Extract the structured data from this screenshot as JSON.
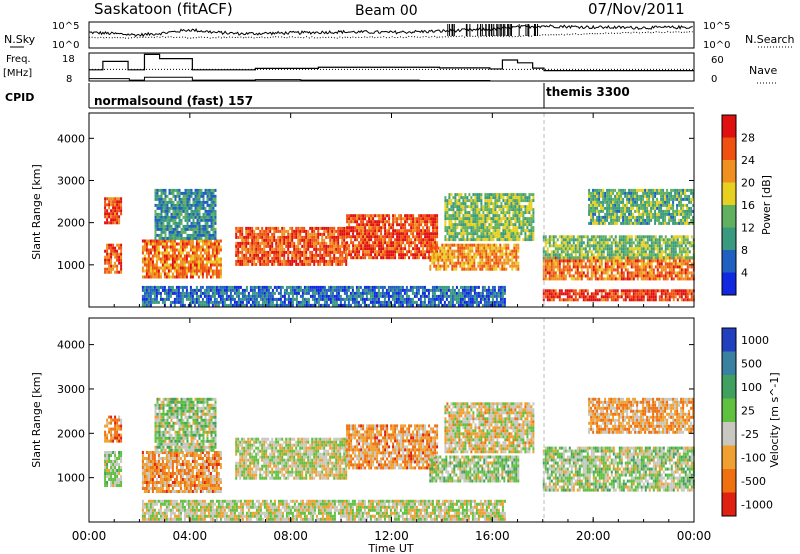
{
  "header": {
    "station": "Saskatoon (fitACF)",
    "beam": "Beam 00",
    "date": "07/Nov/2011"
  },
  "chart_data": [
    {
      "type": "line",
      "panel": "sky-search",
      "left_label": "N.Sky",
      "right_label": "N.Search",
      "left_ticks": [
        "10^5",
        "10^0"
      ],
      "right_ticks": [
        "10^5",
        "10^0"
      ],
      "x": [
        0,
        1,
        2,
        3,
        4,
        5,
        6,
        8,
        10,
        12,
        14,
        16,
        17,
        18,
        20,
        22,
        24
      ],
      "sky_level": [
        0.6,
        0.55,
        0.5,
        0.58,
        0.7,
        0.6,
        0.55,
        0.58,
        0.62,
        0.6,
        0.65,
        0.72,
        0.8,
        0.85,
        0.8,
        0.78,
        0.8
      ],
      "search_level": [
        0.4,
        0.4,
        0.4,
        0.42,
        0.4,
        0.4,
        0.4,
        0.42,
        0.4,
        0.42,
        0.43,
        0.45,
        0.45,
        0.5,
        0.55,
        0.6,
        0.62
      ]
    },
    {
      "type": "line",
      "panel": "frequency-nave",
      "left_label_lines": [
        "Freq.",
        "[MHz]"
      ],
      "right_label": "Nave",
      "left_ticks": [
        18,
        8
      ],
      "right_ticks": [
        60,
        0
      ],
      "left_range": [
        8,
        18
      ],
      "right_range": [
        0,
        60
      ],
      "freq_steps": [
        [
          0,
          12
        ],
        [
          0.55,
          15
        ],
        [
          1.55,
          12
        ],
        [
          2.2,
          17.5
        ],
        [
          2.8,
          16
        ],
        [
          4.1,
          12
        ],
        [
          6.6,
          12.5
        ],
        [
          9.1,
          12.9
        ],
        [
          13.1,
          12.9
        ],
        [
          13.9,
          12.7
        ],
        [
          15.9,
          12.3
        ],
        [
          16.4,
          15.5
        ],
        [
          17.0,
          14.5
        ],
        [
          17.6,
          12.6
        ],
        [
          18.05,
          11.7
        ],
        [
          24,
          11.7
        ]
      ],
      "nave_steps": [
        [
          0,
          5
        ],
        [
          1.4,
          5
        ],
        [
          1.6,
          2
        ],
        [
          2.2,
          8
        ],
        [
          4.1,
          2
        ],
        [
          6.6,
          3
        ],
        [
          8.4,
          2
        ],
        [
          13.1,
          1
        ],
        [
          15.9,
          0
        ],
        [
          16.4,
          0
        ],
        [
          18.05,
          0
        ],
        [
          24,
          0
        ]
      ],
      "nave_dotted": 25
    },
    {
      "type": "table",
      "panel": "cpid",
      "label": "CPID",
      "segments": [
        {
          "start": 0,
          "end": 18.05,
          "text": "normalsound (fast) 157"
        },
        {
          "start": 18.05,
          "end": 24,
          "text": "themis 3300"
        }
      ]
    },
    {
      "type": "heatmap",
      "panel": "power",
      "ylabel": "Slant Range [km]",
      "yticks": [
        1000,
        2000,
        3000,
        4000
      ],
      "ylim": [
        0,
        4600
      ],
      "colorbar_label": "Power [dB]",
      "colorbar_ticks": [
        4,
        8,
        12,
        16,
        20,
        24,
        28
      ],
      "colors": [
        "#1028e0",
        "#2060c0",
        "#3a9a80",
        "#60b060",
        "#e8d020",
        "#f09020",
        "#f05010",
        "#e01010"
      ],
      "bands": [
        {
          "x0": 0.6,
          "x1": 1.3,
          "y0": 2000,
          "y1": 2600,
          "level": 0.85
        },
        {
          "x0": 0.6,
          "x1": 1.3,
          "y0": 800,
          "y1": 1500,
          "level": 0.8
        },
        {
          "x0": 2.1,
          "x1": 5.2,
          "y0": 700,
          "y1": 1600,
          "level": 0.75
        },
        {
          "x0": 2.6,
          "x1": 5.0,
          "y0": 1600,
          "y1": 2800,
          "level": 0.3
        },
        {
          "x0": 5.8,
          "x1": 10.2,
          "y0": 1000,
          "y1": 1900,
          "level": 0.82
        },
        {
          "x0": 10.2,
          "x1": 13.8,
          "y0": 1200,
          "y1": 2200,
          "level": 0.85
        },
        {
          "x0": 13.5,
          "x1": 17.0,
          "y0": 900,
          "y1": 1500,
          "level": 0.7
        },
        {
          "x0": 14.1,
          "x1": 17.6,
          "y0": 1600,
          "y1": 2700,
          "level": 0.45
        },
        {
          "x0": 18.0,
          "x1": 24.0,
          "y0": 700,
          "y1": 1200,
          "level": 0.75
        },
        {
          "x0": 18.0,
          "x1": 24.0,
          "y0": 1200,
          "y1": 1700,
          "level": 0.45
        },
        {
          "x0": 19.8,
          "x1": 24.0,
          "y0": 2000,
          "y1": 2800,
          "level": 0.4
        },
        {
          "x0": 18.0,
          "x1": 24.0,
          "y0": 180,
          "y1": 420,
          "level": 0.88
        },
        {
          "x0": 2.1,
          "x1": 16.5,
          "y0": 60,
          "y1": 500,
          "level": 0.2
        }
      ]
    },
    {
      "type": "heatmap",
      "panel": "velocity",
      "ylabel": "Slant Range [km]",
      "yticks": [
        1000,
        2000,
        3000,
        4000
      ],
      "ylim": [
        0,
        4600
      ],
      "colorbar_label": "Velocity [m s^-1]",
      "colorbar_ticks": [
        "1000",
        "500",
        "100",
        "25",
        "-25",
        "-100",
        "-500",
        "-1000"
      ],
      "colors": [
        "#2040c0",
        "#3a80a0",
        "#40a060",
        "#60c040",
        "#c8c8c0",
        "#f0a030",
        "#f07010",
        "#e02010"
      ],
      "bands": [
        {
          "x0": 0.6,
          "x1": 1.3,
          "y0": 1800,
          "y1": 2400,
          "level": 0.75
        },
        {
          "x0": 0.6,
          "x1": 1.3,
          "y0": 800,
          "y1": 1600,
          "level": 0.5
        },
        {
          "x0": 2.1,
          "x1": 5.2,
          "y0": 700,
          "y1": 1600,
          "level": 0.72
        },
        {
          "x0": 2.6,
          "x1": 5.0,
          "y0": 1600,
          "y1": 2800,
          "level": 0.5
        },
        {
          "x0": 5.8,
          "x1": 10.2,
          "y0": 1000,
          "y1": 1900,
          "level": 0.55
        },
        {
          "x0": 10.2,
          "x1": 13.8,
          "y0": 1200,
          "y1": 2200,
          "level": 0.72
        },
        {
          "x0": 13.5,
          "x1": 17.0,
          "y0": 900,
          "y1": 1500,
          "level": 0.5
        },
        {
          "x0": 14.1,
          "x1": 17.6,
          "y0": 1600,
          "y1": 2700,
          "level": 0.6
        },
        {
          "x0": 18.0,
          "x1": 24.0,
          "y0": 700,
          "y1": 1700,
          "level": 0.5
        },
        {
          "x0": 19.8,
          "x1": 24.0,
          "y0": 2000,
          "y1": 2800,
          "level": 0.7
        },
        {
          "x0": 2.1,
          "x1": 16.5,
          "y0": 60,
          "y1": 500,
          "level": 0.55
        }
      ]
    }
  ],
  "x_axis": {
    "label": "Time UT",
    "ticks": [
      "00:00",
      "04:00",
      "08:00",
      "12:00",
      "16:00",
      "20:00",
      "00:00"
    ],
    "range": [
      0,
      24
    ]
  }
}
